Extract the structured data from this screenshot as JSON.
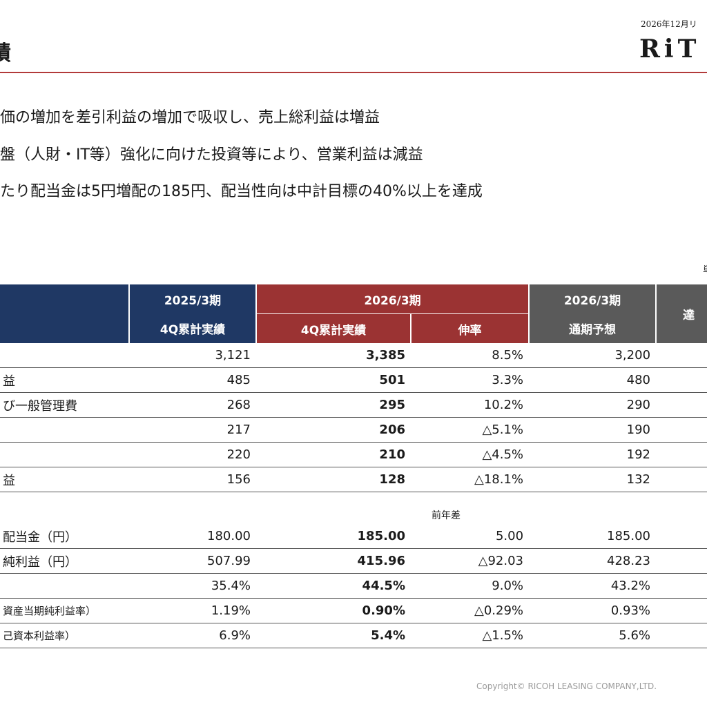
{
  "header": {
    "title": "績",
    "date": "2026年12月リ",
    "logo": "RiT"
  },
  "bullets": [
    "価の増加を差引利益の増加で吸収し、売上総利益は増益",
    "盤（人財・IT等）強化に向けた投資等により、営業利益は減益",
    "たり配当金は5円増配の185円、配当性向は中計目標の40%以上を達成"
  ],
  "unit_note": "単",
  "table": {
    "col_2025": "2025/3期",
    "col_2025_sub": "4Q累計実績",
    "col_2026": "2026/3期",
    "col_2026_actual": "4Q累計実績",
    "col_2026_growth": "伸率",
    "col_forecast": "2026/3期",
    "col_forecast_sub": "通期予想",
    "col_achieve": "達",
    "rows_top": [
      {
        "label": "",
        "prev": "3,121",
        "curr": "3,385",
        "rate": "8.5%",
        "fcst": "3,200"
      },
      {
        "label": "益",
        "prev": "485",
        "curr": "501",
        "rate": "3.3%",
        "fcst": "480"
      },
      {
        "label": "び一般管理費",
        "prev": "268",
        "curr": "295",
        "rate": "10.2%",
        "fcst": "290"
      },
      {
        "label": "",
        "prev": "217",
        "curr": "206",
        "rate": "△5.1%",
        "fcst": "190"
      },
      {
        "label": "",
        "prev": "220",
        "curr": "210",
        "rate": "△4.5%",
        "fcst": "192"
      },
      {
        "label": "益",
        "prev": "156",
        "curr": "128",
        "rate": "△18.1%",
        "fcst": "132"
      }
    ],
    "diff_label": "前年差",
    "rows_bottom": [
      {
        "label": "配当金（円）",
        "prev": "180.00",
        "curr": "185.00",
        "rate": "5.00",
        "fcst": "185.00"
      },
      {
        "label": "純利益（円）",
        "prev": "507.99",
        "curr": "415.96",
        "rate": "△92.03",
        "fcst": "428.23"
      },
      {
        "label": "",
        "prev": "35.4%",
        "curr": "44.5%",
        "rate": "9.0%",
        "fcst": "43.2%"
      },
      {
        "label": "資産当期純利益率）",
        "prev": "1.19%",
        "curr": "0.90%",
        "rate": "△0.29%",
        "fcst": "0.93%"
      },
      {
        "label": "己資本利益率）",
        "prev": "6.9%",
        "curr": "5.4%",
        "rate": "△1.5%",
        "fcst": "5.6%"
      }
    ]
  },
  "footer": {
    "copyright": "Copyright© RICOH LEASING COMPANY,LTD."
  }
}
